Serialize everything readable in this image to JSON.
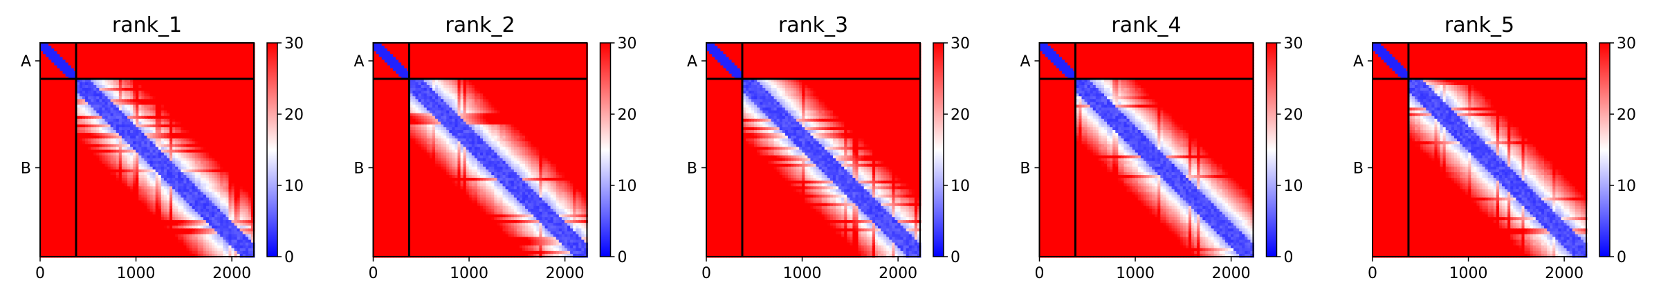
{
  "chart_data": [
    {
      "type": "heatmap",
      "title": "rank_1",
      "xlabel": "",
      "ylabel": "",
      "x_ticks": [
        0,
        1000,
        2000
      ],
      "xlim": [
        0,
        2230
      ],
      "y_ticks": [
        "A",
        "B"
      ],
      "chain_boundary": 375,
      "total_length": 2230,
      "colorbar": {
        "ticks": [
          0,
          10,
          20,
          30
        ],
        "range": [
          0,
          30
        ],
        "colormap": "bwr"
      },
      "colors": {
        "low": "#0000ff",
        "mid": "#ffffff",
        "high": "#ff0000"
      },
      "grid": false
    },
    {
      "type": "heatmap",
      "title": "rank_2",
      "xlabel": "",
      "ylabel": "",
      "x_ticks": [
        0,
        1000,
        2000
      ],
      "xlim": [
        0,
        2230
      ],
      "y_ticks": [
        "A",
        "B"
      ],
      "chain_boundary": 375,
      "total_length": 2230,
      "colorbar": {
        "ticks": [
          0,
          10,
          20,
          30
        ],
        "range": [
          0,
          30
        ],
        "colormap": "bwr"
      },
      "colors": {
        "low": "#0000ff",
        "mid": "#ffffff",
        "high": "#ff0000"
      },
      "grid": false
    },
    {
      "type": "heatmap",
      "title": "rank_3",
      "xlabel": "",
      "ylabel": "",
      "x_ticks": [
        0,
        1000,
        2000
      ],
      "xlim": [
        0,
        2230
      ],
      "y_ticks": [
        "A",
        "B"
      ],
      "chain_boundary": 375,
      "total_length": 2230,
      "colorbar": {
        "ticks": [
          0,
          10,
          20,
          30
        ],
        "range": [
          0,
          30
        ],
        "colormap": "bwr"
      },
      "colors": {
        "low": "#0000ff",
        "mid": "#ffffff",
        "high": "#ff0000"
      },
      "grid": false
    },
    {
      "type": "heatmap",
      "title": "rank_4",
      "xlabel": "",
      "ylabel": "",
      "x_ticks": [
        0,
        1000,
        2000
      ],
      "xlim": [
        0,
        2230
      ],
      "y_ticks": [
        "A",
        "B"
      ],
      "chain_boundary": 375,
      "total_length": 2230,
      "colorbar": {
        "ticks": [
          0,
          10,
          20,
          30
        ],
        "range": [
          0,
          30
        ],
        "colormap": "bwr"
      },
      "colors": {
        "low": "#0000ff",
        "mid": "#ffffff",
        "high": "#ff0000"
      },
      "grid": false
    },
    {
      "type": "heatmap",
      "title": "rank_5",
      "xlabel": "",
      "ylabel": "",
      "x_ticks": [
        0,
        1000,
        2000
      ],
      "xlim": [
        0,
        2230
      ],
      "y_ticks": [
        "A",
        "B"
      ],
      "chain_boundary": 375,
      "total_length": 2230,
      "colorbar": {
        "ticks": [
          0,
          10,
          20,
          30
        ],
        "range": [
          0,
          30
        ],
        "colormap": "bwr"
      },
      "colors": {
        "low": "#0000ff",
        "mid": "#ffffff",
        "high": "#ff0000"
      },
      "grid": false
    }
  ]
}
